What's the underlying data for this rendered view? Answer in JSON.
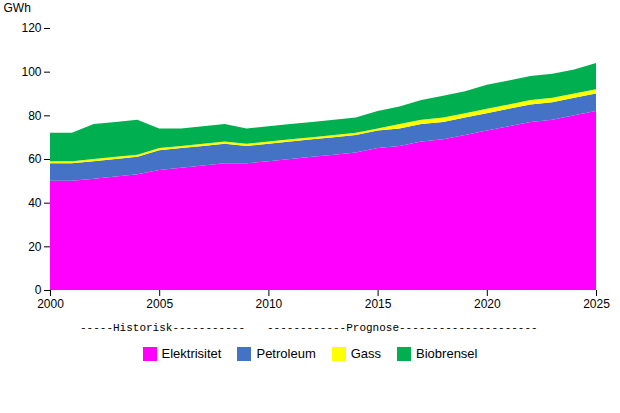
{
  "chart_data": {
    "type": "area",
    "stacked": true,
    "x": [
      2000,
      2001,
      2002,
      2003,
      2004,
      2005,
      2006,
      2007,
      2008,
      2009,
      2010,
      2011,
      2012,
      2013,
      2014,
      2015,
      2016,
      2017,
      2018,
      2019,
      2020,
      2021,
      2022,
      2023,
      2024,
      2025
    ],
    "series": [
      {
        "name": "Elektrisitet",
        "color": "#ff00ff",
        "values": [
          50,
          50,
          51,
          52,
          53,
          55,
          56,
          57,
          58,
          58,
          59,
          60,
          61,
          62,
          63,
          65,
          66,
          68,
          69,
          71,
          73,
          75,
          77,
          78,
          80,
          82
        ]
      },
      {
        "name": "Petroleum",
        "color": "#4472c4",
        "values": [
          8,
          8,
          8,
          8,
          8,
          9,
          9,
          9,
          9,
          8,
          8,
          8,
          8,
          8,
          8,
          8,
          8,
          8,
          8,
          8,
          8,
          8,
          8,
          8,
          8,
          8
        ]
      },
      {
        "name": "Gass",
        "color": "#ffff00",
        "values": [
          1,
          1,
          1,
          1,
          1,
          1,
          1,
          1,
          1,
          1,
          1,
          1,
          1,
          1,
          1,
          1,
          2,
          2,
          2,
          2,
          2,
          2,
          2,
          2,
          2,
          2
        ]
      },
      {
        "name": "Biobrensel",
        "color": "#00b050",
        "values": [
          13,
          13,
          16,
          16,
          16,
          9,
          8,
          8,
          8,
          7,
          7,
          7,
          7,
          7,
          7,
          8,
          8,
          9,
          10,
          10,
          11,
          11,
          11,
          11,
          11,
          12
        ]
      }
    ],
    "ylabel": "GWh",
    "ylim": [
      0,
      120
    ],
    "yticks": [
      0,
      20,
      40,
      60,
      80,
      100,
      120
    ],
    "xlim": [
      2000,
      2025
    ],
    "xticks": [
      2000,
      2005,
      2010,
      2015,
      2020,
      2025
    ],
    "annotations": [
      "-----Historisk-----------",
      "------------Prognose---------------------"
    ],
    "legend": "bottom",
    "grid": false
  }
}
